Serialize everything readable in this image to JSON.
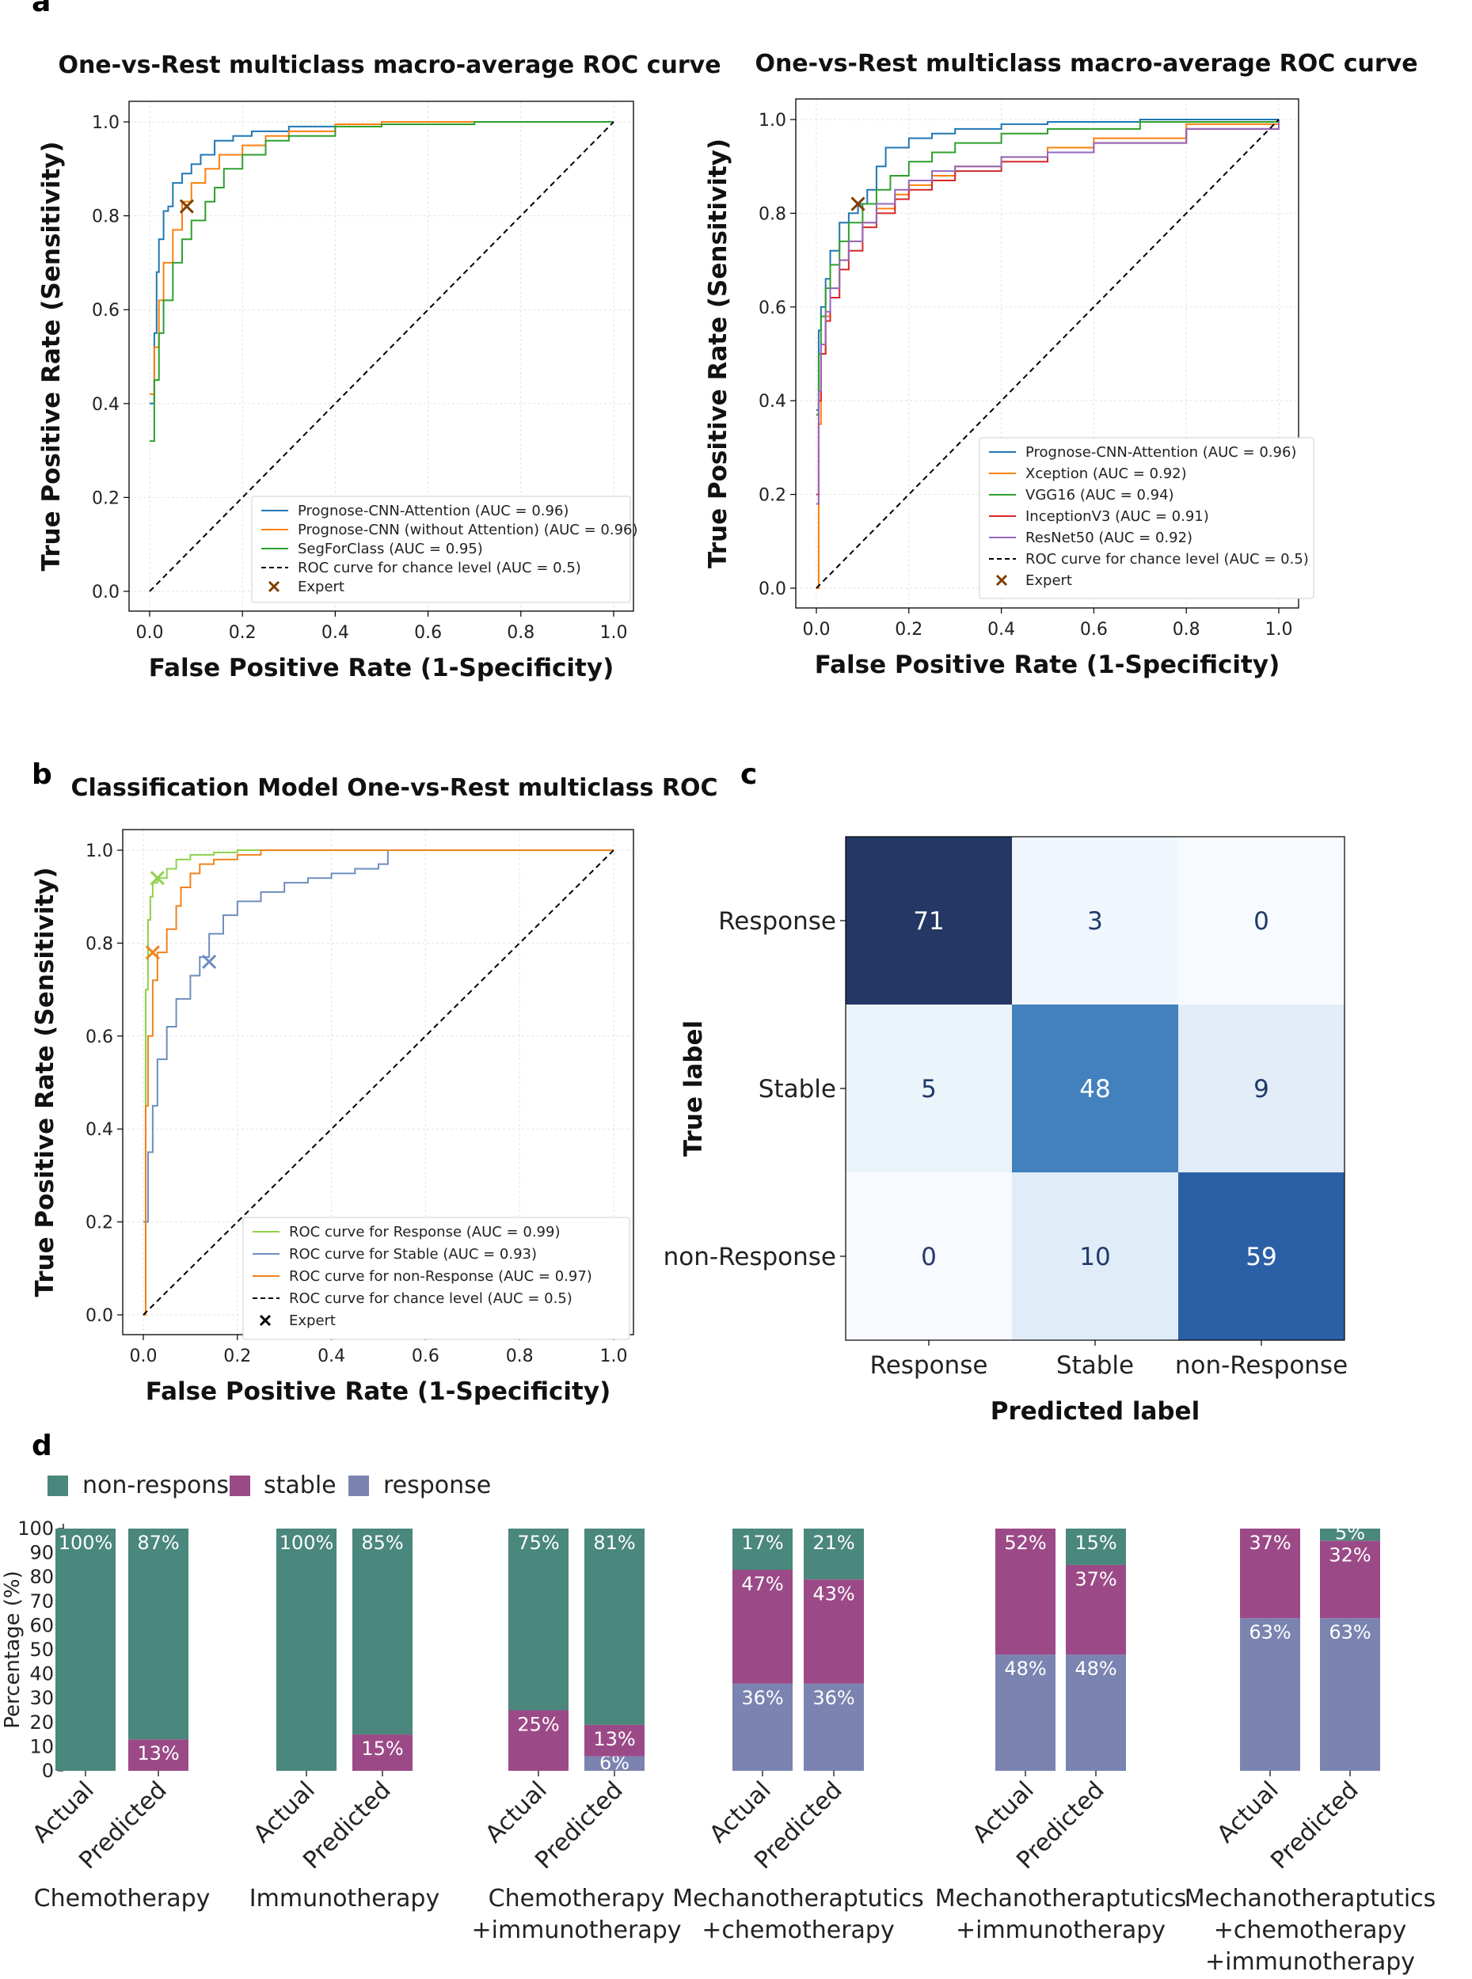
{
  "chart_data": [
    {
      "panel": "a",
      "type": "line",
      "title": "One-vs-Rest multiclass macro-average ROC curve",
      "xlabel": "False Positive Rate (1-Specificity)",
      "ylabel": "True Positive Rate (Sensitivity)",
      "xlim": [
        0,
        1
      ],
      "ylim": [
        0,
        1
      ],
      "ticks": [
        "0.0",
        "0.2",
        "0.4",
        "0.6",
        "0.8",
        "1.0"
      ],
      "legend_position": "bottom-right",
      "series": [
        {
          "name": "Prognose-CNN-Attention (AUC = 0.96)",
          "color": "#1f77b4",
          "x": [
            0,
            0.01,
            0.015,
            0.02,
            0.03,
            0.04,
            0.05,
            0.07,
            0.09,
            0.11,
            0.14,
            0.18,
            0.22,
            0.3,
            0.4,
            0.5,
            0.7,
            1.0
          ],
          "y": [
            0.4,
            0.55,
            0.68,
            0.75,
            0.81,
            0.82,
            0.87,
            0.89,
            0.91,
            0.93,
            0.96,
            0.97,
            0.98,
            0.99,
            0.995,
            1.0,
            1.0,
            1.0
          ]
        },
        {
          "name": "Prognose-CNN (without Attention) (AUC = 0.96)",
          "color": "#ff7f0e",
          "x": [
            0,
            0.01,
            0.02,
            0.03,
            0.05,
            0.07,
            0.09,
            0.12,
            0.15,
            0.2,
            0.25,
            0.3,
            0.4,
            0.5,
            0.7,
            1.0
          ],
          "y": [
            0.42,
            0.52,
            0.62,
            0.7,
            0.77,
            0.83,
            0.87,
            0.9,
            0.93,
            0.95,
            0.97,
            0.98,
            0.995,
            1.0,
            1.0,
            1.0
          ]
        },
        {
          "name": "SegForClass (AUC = 0.95)",
          "color": "#2ca02c",
          "x": [
            0,
            0.01,
            0.02,
            0.03,
            0.05,
            0.07,
            0.09,
            0.12,
            0.14,
            0.16,
            0.2,
            0.25,
            0.3,
            0.4,
            0.5,
            0.7,
            1.0
          ],
          "y": [
            0.32,
            0.45,
            0.55,
            0.62,
            0.7,
            0.75,
            0.79,
            0.83,
            0.86,
            0.9,
            0.93,
            0.96,
            0.97,
            0.99,
            0.995,
            1.0,
            1.0
          ]
        },
        {
          "name": "ROC curve for chance level (AUC = 0.5)",
          "color": "#000000",
          "dashed": true,
          "x": [
            0,
            1
          ],
          "y": [
            0,
            1
          ]
        }
      ],
      "points": [
        {
          "name": "Expert",
          "x": 0.08,
          "y": 0.82,
          "color": "#7f3f00"
        }
      ]
    },
    {
      "panel": "a",
      "type": "line",
      "title": "One-vs-Rest multiclass macro-average ROC curve",
      "xlabel": "False Positive Rate (1-Specificity)",
      "ylabel": "True Positive Rate (Sensitivity)",
      "xlim": [
        0,
        1
      ],
      "ylim": [
        0,
        1
      ],
      "ticks": [
        "0.0",
        "0.2",
        "0.4",
        "0.6",
        "0.8",
        "1.0"
      ],
      "legend_position": "bottom-right",
      "series": [
        {
          "name": "Prognose-CNN-Attention (AUC = 0.96)",
          "color": "#1f77b4",
          "x": [
            0,
            0.005,
            0.01,
            0.02,
            0.03,
            0.05,
            0.07,
            0.09,
            0.11,
            0.13,
            0.15,
            0.2,
            0.25,
            0.3,
            0.4,
            0.5,
            0.7,
            1.0
          ],
          "y": [
            0.38,
            0.55,
            0.6,
            0.66,
            0.72,
            0.78,
            0.8,
            0.82,
            0.85,
            0.9,
            0.94,
            0.96,
            0.97,
            0.98,
            0.99,
            0.995,
            1.0,
            1.0
          ]
        },
        {
          "name": "Xception (AUC = 0.92)",
          "color": "#ff7f0e",
          "x": [
            0,
            0.005,
            0.01,
            0.02,
            0.03,
            0.05,
            0.07,
            0.1,
            0.13,
            0.17,
            0.2,
            0.25,
            0.3,
            0.4,
            0.5,
            0.6,
            0.8,
            1.0
          ],
          "y": [
            0.0,
            0.35,
            0.5,
            0.58,
            0.64,
            0.7,
            0.74,
            0.78,
            0.81,
            0.84,
            0.86,
            0.88,
            0.9,
            0.92,
            0.94,
            0.96,
            0.99,
            1.0
          ]
        },
        {
          "name": "VGG16 (AUC = 0.94)",
          "color": "#2ca02c",
          "x": [
            0,
            0.005,
            0.01,
            0.02,
            0.03,
            0.05,
            0.07,
            0.1,
            0.13,
            0.16,
            0.2,
            0.25,
            0.3,
            0.4,
            0.5,
            0.7,
            1.0
          ],
          "y": [
            0.37,
            0.5,
            0.58,
            0.64,
            0.69,
            0.74,
            0.78,
            0.82,
            0.85,
            0.88,
            0.91,
            0.93,
            0.95,
            0.97,
            0.98,
            0.995,
            1.0
          ]
        },
        {
          "name": "InceptionV3 (AUC = 0.91)",
          "color": "#d62728",
          "x": [
            0,
            0.005,
            0.01,
            0.02,
            0.03,
            0.05,
            0.07,
            0.1,
            0.13,
            0.17,
            0.2,
            0.25,
            0.3,
            0.4,
            0.5,
            0.6,
            0.8,
            1.0
          ],
          "y": [
            0.2,
            0.4,
            0.5,
            0.57,
            0.62,
            0.68,
            0.72,
            0.77,
            0.8,
            0.83,
            0.85,
            0.87,
            0.89,
            0.91,
            0.93,
            0.95,
            0.98,
            1.0
          ]
        },
        {
          "name": "ResNet50 (AUC = 0.92)",
          "color": "#9467bd",
          "x": [
            0,
            0.005,
            0.01,
            0.02,
            0.03,
            0.05,
            0.07,
            0.1,
            0.13,
            0.17,
            0.2,
            0.25,
            0.3,
            0.4,
            0.5,
            0.6,
            0.8,
            1.0
          ],
          "y": [
            0.18,
            0.42,
            0.52,
            0.59,
            0.64,
            0.7,
            0.74,
            0.78,
            0.82,
            0.85,
            0.87,
            0.89,
            0.9,
            0.92,
            0.93,
            0.95,
            0.98,
            1.0
          ]
        },
        {
          "name": "ROC curve for chance level (AUC = 0.5)",
          "color": "#000000",
          "dashed": true,
          "x": [
            0,
            1
          ],
          "y": [
            0,
            1
          ]
        }
      ],
      "points": [
        {
          "name": "Expert",
          "x": 0.09,
          "y": 0.82,
          "color": "#7f3f00"
        }
      ]
    },
    {
      "panel": "b",
      "type": "line",
      "title": "Classification Model One-vs-Rest multiclass ROC",
      "xlabel": "False Positive Rate (1-Specificity)",
      "ylabel": "True Positive Rate (Sensitivity)",
      "xlim": [
        0,
        1
      ],
      "ylim": [
        0,
        1
      ],
      "ticks": [
        "0.0",
        "0.2",
        "0.4",
        "0.6",
        "0.8",
        "1.0"
      ],
      "legend_position": "bottom-right",
      "series": [
        {
          "name": "ROC curve for Response (AUC = 0.99)",
          "color": "#8ed14b",
          "x": [
            0,
            0.005,
            0.01,
            0.015,
            0.02,
            0.03,
            0.05,
            0.07,
            0.1,
            0.15,
            0.2,
            0.3,
            0.5,
            1.0
          ],
          "y": [
            0.0,
            0.7,
            0.85,
            0.9,
            0.93,
            0.94,
            0.96,
            0.98,
            0.99,
            0.995,
            1.0,
            1.0,
            1.0,
            1.0
          ]
        },
        {
          "name": "ROC curve for Stable (AUC = 0.93)",
          "color": "#6c8ebf",
          "x": [
            0,
            0.01,
            0.02,
            0.03,
            0.05,
            0.07,
            0.1,
            0.12,
            0.14,
            0.17,
            0.2,
            0.25,
            0.3,
            0.35,
            0.4,
            0.45,
            0.5,
            0.52,
            0.6,
            1.0
          ],
          "y": [
            0.2,
            0.35,
            0.45,
            0.55,
            0.62,
            0.68,
            0.73,
            0.77,
            0.82,
            0.86,
            0.89,
            0.91,
            0.93,
            0.94,
            0.95,
            0.96,
            0.97,
            1.0,
            1.0,
            1.0
          ]
        },
        {
          "name": "ROC curve for non-Response (AUC = 0.97)",
          "color": "#f0821e",
          "x": [
            0,
            0.005,
            0.01,
            0.02,
            0.03,
            0.05,
            0.07,
            0.08,
            0.1,
            0.12,
            0.15,
            0.2,
            0.25,
            0.3,
            0.5,
            1.0
          ],
          "y": [
            0.0,
            0.45,
            0.6,
            0.72,
            0.78,
            0.83,
            0.88,
            0.92,
            0.95,
            0.97,
            0.98,
            0.99,
            1.0,
            1.0,
            1.0,
            1.0
          ]
        },
        {
          "name": "ROC curve for chance level (AUC = 0.5)",
          "color": "#000000",
          "dashed": true,
          "x": [
            0,
            1
          ],
          "y": [
            0,
            1
          ]
        }
      ],
      "points": [
        {
          "name": "Expert",
          "x": 0.03,
          "y": 0.94,
          "color": "#8ed14b"
        },
        {
          "name": "Expert",
          "x": 0.02,
          "y": 0.78,
          "color": "#f0821e"
        },
        {
          "name": "Expert",
          "x": 0.14,
          "y": 0.76,
          "color": "#6c8ebf"
        }
      ],
      "expert_legend_label": "Expert"
    },
    {
      "panel": "c",
      "type": "heatmap",
      "xlabel": "Predicted label",
      "ylabel": "True label",
      "row_labels": [
        "Response",
        "Stable",
        "non-Response"
      ],
      "col_labels": [
        "Response",
        "Stable",
        "non-Response"
      ],
      "matrix": [
        [
          71,
          3,
          0
        ],
        [
          5,
          48,
          9
        ],
        [
          0,
          10,
          59
        ]
      ],
      "cells": [
        [
          "71",
          "3",
          "0"
        ],
        [
          "5",
          "48",
          "9"
        ],
        [
          "0",
          "10",
          "59"
        ]
      ]
    },
    {
      "panel": "d",
      "type": "bar",
      "stacked": true,
      "ylabel": "Percentage (%)",
      "ylim": [
        0,
        100
      ],
      "yticks": [
        "0",
        "10",
        "20",
        "30",
        "40",
        "50",
        "60",
        "70",
        "80",
        "90",
        "100"
      ],
      "legend": [
        {
          "name": "non-respons",
          "color": "#4a877c"
        },
        {
          "name": "stable",
          "color": "#9b4a87"
        },
        {
          "name": "response",
          "color": "#7b83b0"
        }
      ],
      "bar_labels": [
        "Actual",
        "Predicted"
      ],
      "groups": [
        {
          "label_lines": [
            "Chemotherapy"
          ],
          "bars": [
            {
              "response": 0,
              "stable": 0,
              "non_response": 100,
              "labels": {
                "non_response": "100%"
              }
            },
            {
              "response": 0,
              "stable": 13,
              "non_response": 87,
              "labels": {
                "stable": "13%",
                "non_response": "87%"
              }
            }
          ]
        },
        {
          "label_lines": [
            "Immunotherapy"
          ],
          "bars": [
            {
              "response": 0,
              "stable": 0,
              "non_response": 100,
              "labels": {
                "non_response": "100%"
              }
            },
            {
              "response": 0,
              "stable": 15,
              "non_response": 85,
              "labels": {
                "stable": "15%",
                "non_response": "85%"
              }
            }
          ]
        },
        {
          "label_lines": [
            "Chemotherapy",
            "+immunotherapy"
          ],
          "bars": [
            {
              "response": 0,
              "stable": 25,
              "non_response": 75,
              "labels": {
                "stable": "25%",
                "non_response": "75%"
              }
            },
            {
              "response": 6,
              "stable": 13,
              "non_response": 81,
              "labels": {
                "response": "6%",
                "stable": "13%",
                "non_response": "81%"
              }
            }
          ]
        },
        {
          "label_lines": [
            "Mechanotheraptutics",
            "+chemotherapy"
          ],
          "bars": [
            {
              "response": 36,
              "stable": 47,
              "non_response": 17,
              "labels": {
                "response": "36%",
                "stable": "47%",
                "non_response": "17%"
              }
            },
            {
              "response": 36,
              "stable": 43,
              "non_response": 21,
              "labels": {
                "response": "36%",
                "stable": "43%",
                "non_response": "21%"
              }
            }
          ]
        },
        {
          "label_lines": [
            "Mechanotheraptutics",
            "+immunotherapy"
          ],
          "bars": [
            {
              "response": 48,
              "stable": 52,
              "non_response": 0,
              "labels": {
                "response": "48%",
                "stable": "52%"
              }
            },
            {
              "response": 48,
              "stable": 37,
              "non_response": 15,
              "labels": {
                "response": "48%",
                "stable": "37%",
                "non_response": "15%"
              }
            }
          ]
        },
        {
          "label_lines": [
            "Mechanotheraptutics",
            "+chemotherapy",
            "+immunotherapy"
          ],
          "bars": [
            {
              "response": 63,
              "stable": 37,
              "non_response": 0,
              "labels": {
                "response": "63%",
                "stable": "37%"
              }
            },
            {
              "response": 63,
              "stable": 32,
              "non_response": 5,
              "labels": {
                "response": "63%",
                "stable": "32%",
                "non_response": "5%"
              }
            }
          ]
        }
      ]
    }
  ],
  "panel_letters": [
    "a",
    "b",
    "c",
    "d"
  ]
}
